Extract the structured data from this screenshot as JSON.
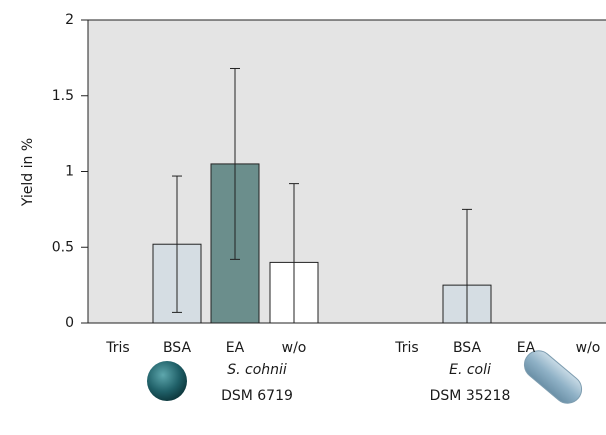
{
  "chart_data": {
    "type": "bar",
    "ylabel": "Yield in %",
    "ylim": [
      0,
      2
    ],
    "yticks": [
      0,
      0.5,
      1,
      1.5,
      2
    ],
    "colors": {
      "Tris": "#d5dde3",
      "BSA": "#d5dde3",
      "EA": "#6b8e8c",
      "w/o": "#ffffff"
    },
    "groups": [
      {
        "organism": "S. cohnii",
        "strain": "DSM 6719",
        "categories": [
          "Tris",
          "BSA",
          "EA",
          "w/o"
        ],
        "values": [
          0,
          0.52,
          1.05,
          0.4
        ],
        "errors": [
          null,
          0.45,
          0.63,
          0.52
        ]
      },
      {
        "organism": "E. coli",
        "strain": "DSM 35218",
        "categories": [
          "Tris",
          "BSA",
          "EA",
          "w/o"
        ],
        "values": [
          0,
          0.25,
          0,
          0
        ],
        "errors": [
          null,
          0.5,
          null,
          null
        ]
      }
    ]
  }
}
